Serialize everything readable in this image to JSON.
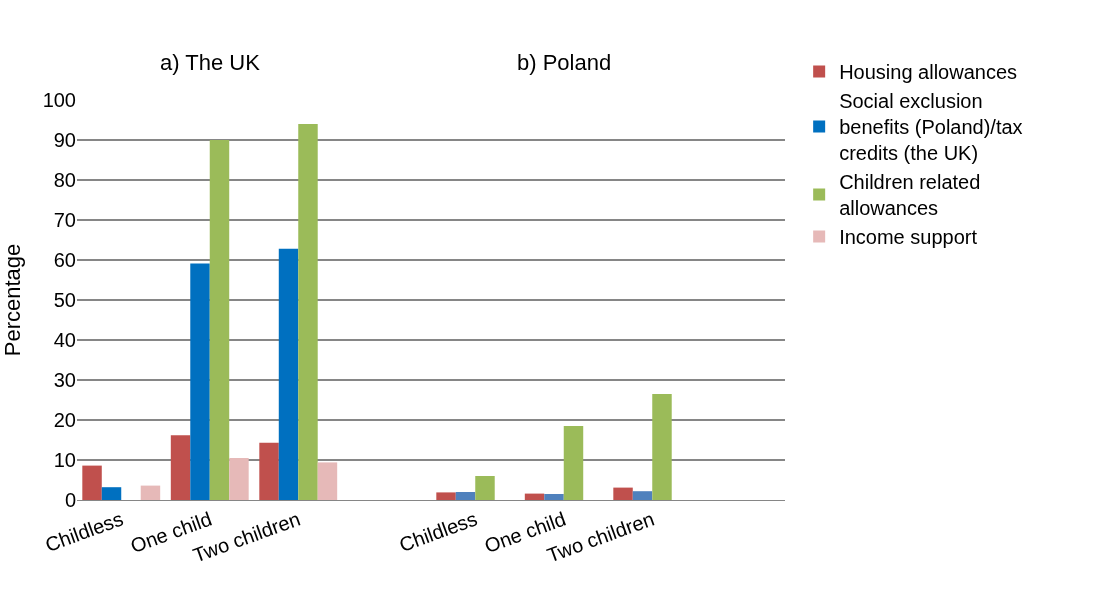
{
  "chart_data": {
    "type": "bar",
    "ylabel": "Percentage",
    "annotations": [
      "a) The UK",
      "b) Poland"
    ],
    "categories": [
      "Childless",
      "One child",
      "Two children",
      null,
      "Childless",
      "One child",
      "Two children",
      null
    ],
    "series": [
      {
        "name": "Housing allowances",
        "color": "#c0504d",
        "values": [
          8.6,
          16.2,
          14.3,
          null,
          1.9,
          1.6,
          3.1,
          null
        ]
      },
      {
        "name": "Social exclusion benefits (Poland)/tax credits (the UK)",
        "color": "#0070c0",
        "colors": [
          "#0070c0",
          "#0070c0",
          "#0070c0",
          "#0070c0",
          "#4f81bd",
          "#4f81bd",
          "#4f81bd",
          "#4f81bd"
        ],
        "values": [
          3.2,
          59.1,
          62.8,
          null,
          2.0,
          1.5,
          2.2,
          null
        ]
      },
      {
        "name": "Children related allowances",
        "color": "#9bbb59",
        "values": [
          null,
          90,
          94,
          null,
          6.0,
          18.5,
          26.5,
          null
        ]
      },
      {
        "name": "Income support",
        "color": "#e6b9b8",
        "values": [
          3.6,
          10.5,
          9.4,
          null,
          null,
          null,
          null,
          null
        ]
      }
    ],
    "ylim": [
      0,
      100
    ],
    "yticks": [
      0,
      10,
      20,
      30,
      40,
      50,
      60,
      70,
      80,
      90,
      100
    ],
    "grid": "y",
    "legend": "right"
  }
}
